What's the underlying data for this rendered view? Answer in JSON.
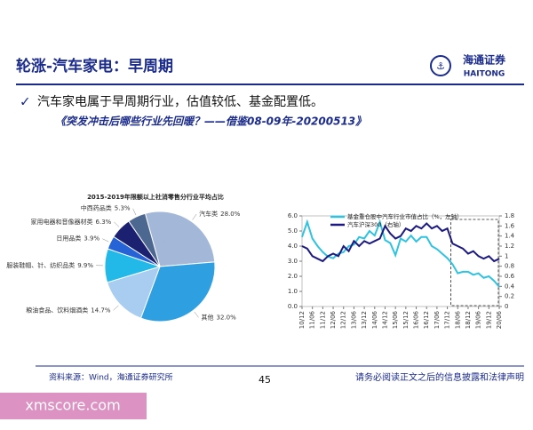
{
  "header": {
    "title": "轮涨-汽车家电：早周期",
    "logo_text": "海通证券",
    "logo_sub": "HAITONG"
  },
  "bullet": "汽车家电属于早周期行业，估值较低、基金配置低。",
  "subtitle": "《突发冲击后哪些行业先回暖？——借鉴08-09年-20200513》",
  "chart_data": [
    {
      "type": "pie",
      "title": "2015-2019年限额以上社消零售分行业平均占比",
      "categories": [
        "汽车类",
        "其他",
        "粮油食品、饮料烟酒类",
        "服装鞋帽、针、纺织品类",
        "日用品类",
        "家用电器和音像器材类",
        "中西药品类"
      ],
      "values": [
        28.0,
        32.0,
        14.7,
        9.9,
        3.9,
        6.3,
        5.3
      ],
      "value_labels": [
        "28.0%",
        "32.0%",
        "14.7%",
        "9.9%",
        "3.9%",
        "6.3%",
        "5.3%"
      ],
      "colors": [
        "#a3b8d8",
        "#2e9fe0",
        "#a9cdf0",
        "#22b9e8",
        "#2563d6",
        "#1b2070",
        "#4d6890"
      ]
    },
    {
      "type": "line",
      "categories": [
        "10/12",
        null,
        "11/06",
        null,
        "11/12",
        null,
        "12/06",
        null,
        "12/12",
        null,
        "13/06",
        null,
        "13/12",
        null,
        "14/06",
        null,
        "14/12",
        null,
        "15/06",
        null,
        "15/12",
        null,
        "16/06",
        null,
        "16/12",
        null,
        "17/06",
        null,
        "17/12",
        null,
        "18/06",
        null,
        "18/12",
        null,
        "19/06",
        null,
        "19/12",
        null,
        "20/06"
      ],
      "series": [
        {
          "name": "基金重仓股中汽车行业市值占比（%，左轴）",
          "color": "#2fc3e0",
          "values": [
            4.6,
            5.6,
            4.5,
            4.0,
            3.6,
            3.3,
            3.2,
            3.5,
            3.6,
            4.0,
            4.1,
            4.6,
            4.5,
            5.0,
            4.7,
            5.6,
            4.4,
            4.2,
            3.4,
            4.5,
            4.3,
            4.7,
            4.3,
            4.6,
            4.6,
            4.0,
            3.8,
            3.5,
            3.2,
            2.8,
            2.2,
            2.3,
            2.3,
            2.1,
            2.2,
            1.9,
            2.0,
            1.7,
            1.3
          ]
        },
        {
          "name": "汽车沪深300（右轴）",
          "color": "#1c1a80",
          "axis": "y2",
          "values": [
            1.2,
            1.15,
            1.0,
            0.95,
            0.9,
            1.0,
            1.05,
            1.0,
            1.2,
            1.1,
            1.3,
            1.2,
            1.3,
            1.25,
            1.3,
            1.35,
            1.6,
            1.45,
            1.35,
            1.4,
            1.55,
            1.5,
            1.6,
            1.55,
            1.65,
            1.55,
            1.6,
            1.5,
            1.55,
            1.25,
            1.2,
            1.15,
            1.05,
            1.1,
            1.0,
            0.95,
            1.0,
            0.9,
            0.95
          ]
        }
      ],
      "ylim": [
        0,
        6
      ],
      "yticks": [
        {
          "value": 0,
          "label": "0.0"
        },
        {
          "value": 1,
          "label": "1.0"
        },
        {
          "value": 2,
          "label": "2.0"
        },
        {
          "value": 3,
          "label": "3.0"
        },
        {
          "value": 4,
          "label": "4.0"
        },
        {
          "value": 5,
          "label": "5.0"
        },
        {
          "value": 6,
          "label": "6.0"
        }
      ],
      "y2lim": [
        0,
        1.8
      ],
      "y2ticks": [
        0,
        0.2,
        0.4,
        0.6,
        0.8,
        1,
        1.2,
        1.4,
        1.6,
        1.8
      ],
      "legend": "top"
    }
  ],
  "footer": {
    "source": "资料来源：Wind，海通证券研究所",
    "page": "45",
    "disclaimer": "请务必阅读正文之后的信息披露和法律声明"
  },
  "watermark": "xmscore.com"
}
